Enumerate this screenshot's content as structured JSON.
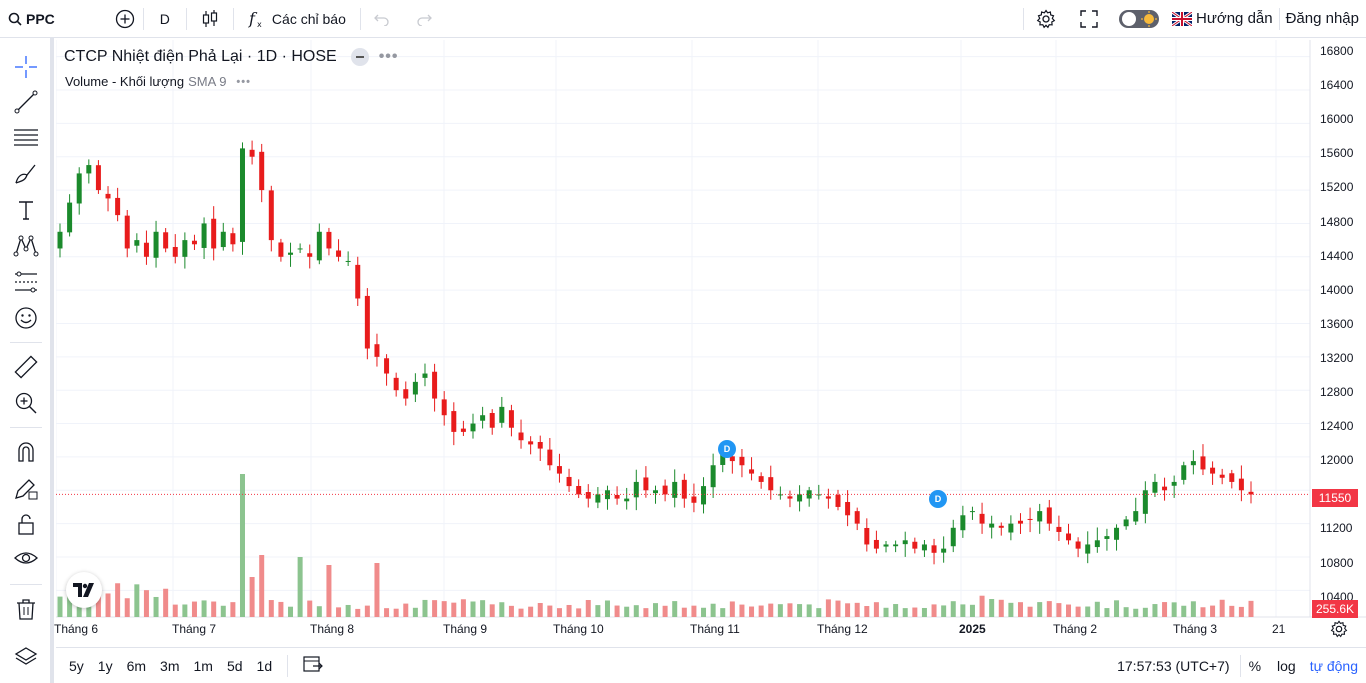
{
  "topbar": {
    "symbol": "PPC",
    "interval": "D",
    "indicators_label": "Các chỉ báo",
    "guide_label": "Hướng dẫn",
    "login_label": "Đăng nhập"
  },
  "legend": {
    "title": "CTCP Nhiệt điện Phả Lại · 1D · HOSE",
    "volume_label": "Volume - Khối lượng",
    "sma_label": "SMA 9"
  },
  "price_axis": {
    "ticks": [
      "16800",
      "16400",
      "16000",
      "15600",
      "15200",
      "14800",
      "14400",
      "14000",
      "13600",
      "13200",
      "12800",
      "12400",
      "12000",
      "11600",
      "11200",
      "10800",
      "10400"
    ],
    "current_price": "11550",
    "current_volume": "255.6K",
    "badge_color": "#f23645"
  },
  "time_axis": {
    "labels": [
      "Tháng 6",
      "Tháng 7",
      "Tháng 8",
      "Tháng 9",
      "Tháng 10",
      "Tháng 11",
      "Tháng 12",
      "2025",
      "Tháng 2",
      "Tháng 3",
      "21"
    ]
  },
  "bottombar": {
    "ranges": [
      "5y",
      "1y",
      "6m",
      "3m",
      "1m",
      "5d",
      "1d"
    ],
    "clock": "17:57:53 (UTC+7)",
    "percent": "%",
    "log": "log",
    "auto": "tự động"
  },
  "dividend_markers": [
    "D",
    "D"
  ],
  "colors": {
    "up": "#089981",
    "down": "#f23645",
    "up_candle": "#1b8a2c",
    "down_candle": "#e81c1c",
    "vol_up": "#8cc48f",
    "vol_down": "#f08b8b"
  },
  "chart_data": {
    "type": "candlestick",
    "x_start": "2024-06",
    "y_range": [
      10200,
      17000
    ],
    "closes": [
      14700,
      15050,
      15400,
      15500,
      15200,
      15100,
      14900,
      14500,
      14600,
      14400,
      14700,
      14500,
      14400,
      14600,
      14550,
      14800,
      14500,
      14700,
      14550,
      15700,
      15600,
      15200,
      14600,
      14400,
      14450,
      14500,
      14400,
      14700,
      14500,
      14400,
      14350,
      13900,
      13300,
      13200,
      13000,
      12800,
      12700,
      12900,
      13000,
      12700,
      12500,
      12300,
      12300,
      12400,
      12500,
      12350,
      12600,
      12350,
      12200,
      12150,
      12100,
      11900,
      11800,
      11650,
      11550,
      11500,
      11550,
      11600,
      11500,
      11500,
      11700,
      11600,
      11600,
      11550,
      11700,
      11500,
      11450,
      11650,
      11900,
      12050,
      11950,
      11900,
      11800,
      11700,
      11600,
      11550,
      11500,
      11550,
      11600,
      11550,
      11500,
      11400,
      11300,
      11200,
      10950,
      10900,
      10950,
      10950,
      11000,
      10900,
      10950,
      10850,
      10900,
      11150,
      11300,
      11350,
      11200,
      11200,
      11150,
      11200,
      11200,
      11250,
      11350,
      11200,
      11100,
      11000,
      10900,
      10950,
      11000,
      11050,
      11150,
      11250,
      11350,
      11600,
      11700,
      11600,
      11700,
      11900,
      11950,
      11850,
      11800,
      11750,
      11700,
      11600,
      11550
    ]
  }
}
